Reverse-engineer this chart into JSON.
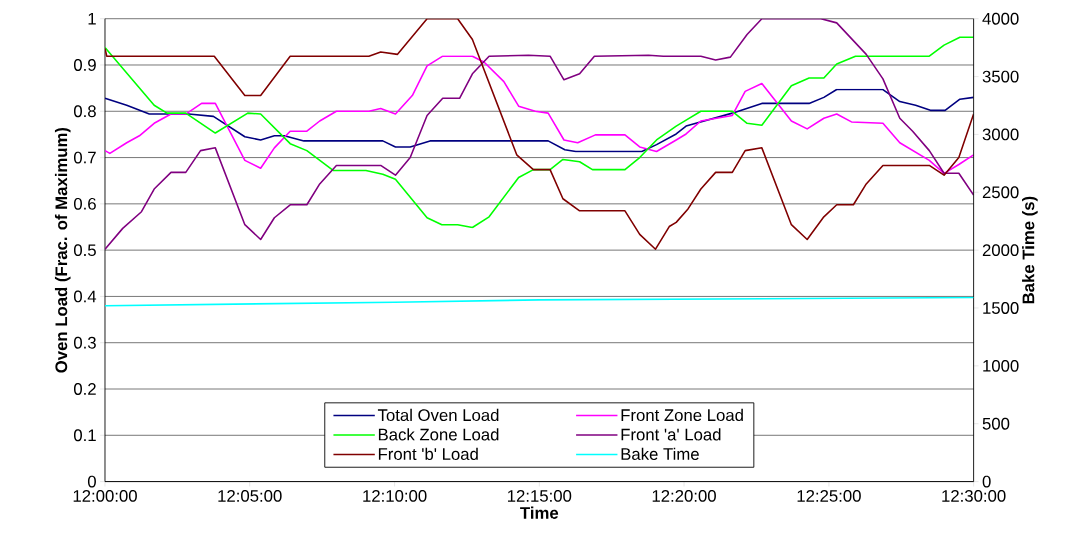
{
  "chart_data": {
    "type": "line",
    "xlabel": "Time",
    "ylabel": "Oven Load (Frac. of Maximum)",
    "y2label": "Bake Time (s)",
    "xlim": [
      12,
      12.5
    ],
    "xticks": [
      {
        "value": 12,
        "label": "12:00:00"
      },
      {
        "value": 12.0833,
        "label": "12:05:00"
      },
      {
        "value": 12.1667,
        "label": "12:10:00"
      },
      {
        "value": 12.25,
        "label": "12:15:00"
      },
      {
        "value": 12.3333,
        "label": "12:20:00"
      },
      {
        "value": 12.4167,
        "label": "12:25:00"
      },
      {
        "value": 12.5,
        "label": "12:30:00"
      }
    ],
    "ylim": [
      0,
      1
    ],
    "yticks": [
      0,
      0.1,
      0.2,
      0.3,
      0.4,
      0.5,
      0.6,
      0.7,
      0.8,
      0.9,
      1
    ],
    "y2lim": [
      0,
      4000
    ],
    "y2ticks": [
      0,
      500,
      1000,
      1500,
      2000,
      2500,
      3000,
      3500,
      4000
    ],
    "grid": "y",
    "legend": "bottom",
    "marker": "none",
    "line_style": "solid",
    "series": [
      {
        "name": "Total Oven Load",
        "color": "#000080",
        "x": [
          12.0,
          12.0125,
          12.0255,
          12.0482,
          12.0624,
          12.0805,
          12.0896,
          12.0975,
          12.1032,
          12.1145,
          12.1599,
          12.1672,
          12.1757,
          12.1871,
          12.2551,
          12.2647,
          12.271,
          12.309,
          12.3175,
          12.3288,
          12.3345,
          12.3611,
          12.3781,
          12.4053,
          12.4138,
          12.4212,
          12.4478,
          12.4575,
          12.4666,
          12.4751,
          12.4836,
          12.4921,
          12.5
        ],
        "values": [
          0.828,
          0.813,
          0.794,
          0.794,
          0.789,
          0.745,
          0.738,
          0.747,
          0.747,
          0.736,
          0.736,
          0.723,
          0.723,
          0.736,
          0.736,
          0.717,
          0.713,
          0.713,
          0.728,
          0.751,
          0.768,
          0.796,
          0.817,
          0.817,
          0.83,
          0.847,
          0.847,
          0.821,
          0.813,
          0.802,
          0.802,
          0.826,
          0.83
        ]
      },
      {
        "name": "Front Zone Load",
        "color": "#ff00ff",
        "x": [
          12.0,
          12.0028,
          12.0125,
          12.0198,
          12.0283,
          12.038,
          12.0465,
          12.0556,
          12.0635,
          12.0805,
          12.0896,
          12.0975,
          12.1066,
          12.1162,
          12.1236,
          12.1332,
          12.1519,
          12.1587,
          12.1672,
          12.1769,
          12.1854,
          12.1944,
          12.2115,
          12.2183,
          12.2296,
          12.2381,
          12.2477,
          12.2551,
          12.2642,
          12.2721,
          12.2823,
          12.2993,
          12.3078,
          12.3175,
          12.3288,
          12.3345,
          12.343,
          12.3611,
          12.3685,
          12.3781,
          12.3951,
          12.4042,
          12.4138,
          12.4212,
          12.4297,
          12.4478,
          12.4575,
          12.4745,
          12.483,
          12.4915,
          12.5
        ],
        "values": [
          0.715,
          0.709,
          0.732,
          0.747,
          0.774,
          0.794,
          0.794,
          0.817,
          0.817,
          0.694,
          0.677,
          0.721,
          0.757,
          0.757,
          0.779,
          0.8,
          0.8,
          0.806,
          0.794,
          0.834,
          0.898,
          0.919,
          0.919,
          0.906,
          0.864,
          0.811,
          0.8,
          0.796,
          0.738,
          0.732,
          0.749,
          0.749,
          0.723,
          0.713,
          0.738,
          0.751,
          0.779,
          0.791,
          0.843,
          0.86,
          0.779,
          0.762,
          0.785,
          0.794,
          0.777,
          0.774,
          0.732,
          0.694,
          0.666,
          0.685,
          0.706
        ]
      },
      {
        "name": "Back Zone Load",
        "color": "#00ff00",
        "x": [
          12.0,
          12.0283,
          12.0357,
          12.0465,
          12.0635,
          12.0822,
          12.0896,
          12.1066,
          12.1162,
          12.1315,
          12.1502,
          12.1599,
          12.1672,
          12.1854,
          12.1939,
          12.203,
          12.2115,
          12.2211,
          12.2381,
          12.2466,
          12.2562,
          12.2636,
          12.2732,
          12.2806,
          12.2993,
          12.3078,
          12.3175,
          12.3288,
          12.3345,
          12.343,
          12.3611,
          12.3696,
          12.3781,
          12.3951,
          12.4053,
          12.4138,
          12.4212,
          12.432,
          12.4745,
          12.483,
          12.4921,
          12.5
        ],
        "values": [
          0.938,
          0.813,
          0.796,
          0.796,
          0.753,
          0.796,
          0.794,
          0.73,
          0.715,
          0.672,
          0.672,
          0.664,
          0.653,
          0.57,
          0.555,
          0.555,
          0.549,
          0.572,
          0.657,
          0.674,
          0.674,
          0.696,
          0.691,
          0.674,
          0.674,
          0.7,
          0.738,
          0.768,
          0.781,
          0.8,
          0.8,
          0.774,
          0.77,
          0.855,
          0.872,
          0.872,
          0.902,
          0.919,
          0.919,
          0.943,
          0.96,
          0.96
        ]
      },
      {
        "name": "Front 'a' Load",
        "color": "#800080",
        "x": [
          12.0,
          12.0102,
          12.021,
          12.0283,
          12.038,
          12.0465,
          12.055,
          12.0635,
          12.0805,
          12.0896,
          12.0975,
          12.1066,
          12.1162,
          12.1236,
          12.1332,
          12.1587,
          12.1672,
          12.1757,
          12.1854,
          12.1944,
          12.2041,
          12.2115,
          12.2211,
          12.2438,
          12.2562,
          12.2642,
          12.2732,
          12.2817,
          12.3129,
          12.3214,
          12.343,
          12.3515,
          12.36,
          12.3696,
          12.3781,
          12.4121,
          12.4212,
          12.4382,
          12.4478,
          12.4575,
          12.4649,
          12.4745,
          12.483,
          12.4915,
          12.5
        ],
        "values": [
          0.502,
          0.547,
          0.583,
          0.632,
          0.668,
          0.668,
          0.715,
          0.721,
          0.555,
          0.523,
          0.57,
          0.598,
          0.598,
          0.643,
          0.683,
          0.683,
          0.662,
          0.7,
          0.791,
          0.828,
          0.828,
          0.881,
          0.919,
          0.921,
          0.919,
          0.868,
          0.881,
          0.919,
          0.921,
          0.919,
          0.919,
          0.911,
          0.917,
          0.966,
          1.0,
          1.0,
          0.991,
          0.923,
          0.87,
          0.785,
          0.757,
          0.715,
          0.666,
          0.666,
          0.619
        ]
      },
      {
        "name": "Front 'b' Load",
        "color": "#800000",
        "x": [
          12.0,
          12.001,
          12.0629,
          12.0805,
          12.0896,
          12.1066,
          12.1519,
          12.1587,
          12.1684,
          12.1854,
          12.203,
          12.2115,
          12.237,
          12.2466,
          12.2562,
          12.2636,
          12.2732,
          12.2993,
          12.3078,
          12.3169,
          12.3248,
          12.3288,
          12.3356,
          12.343,
          12.3515,
          12.3611,
          12.3685,
          12.3781,
          12.3951,
          12.4042,
          12.4138,
          12.4212,
          12.4308,
          12.4382,
          12.4478,
          12.4745,
          12.483,
          12.4915,
          12.5
        ],
        "values": [
          0.936,
          0.919,
          0.919,
          0.834,
          0.834,
          0.919,
          0.919,
          0.928,
          0.923,
          1.0,
          1.0,
          0.955,
          0.706,
          0.674,
          0.674,
          0.611,
          0.585,
          0.585,
          0.534,
          0.502,
          0.551,
          0.56,
          0.589,
          0.632,
          0.668,
          0.668,
          0.715,
          0.721,
          0.555,
          0.523,
          0.572,
          0.598,
          0.598,
          0.643,
          0.683,
          0.683,
          0.662,
          0.7,
          0.794
        ]
      },
      {
        "name": "Bake Time",
        "color": "#00ffff",
        "axis": "y2",
        "x": [
          12.0,
          12.1667,
          12.25,
          12.5
        ],
        "values": [
          1520,
          1550,
          1570,
          1590
        ]
      }
    ]
  }
}
